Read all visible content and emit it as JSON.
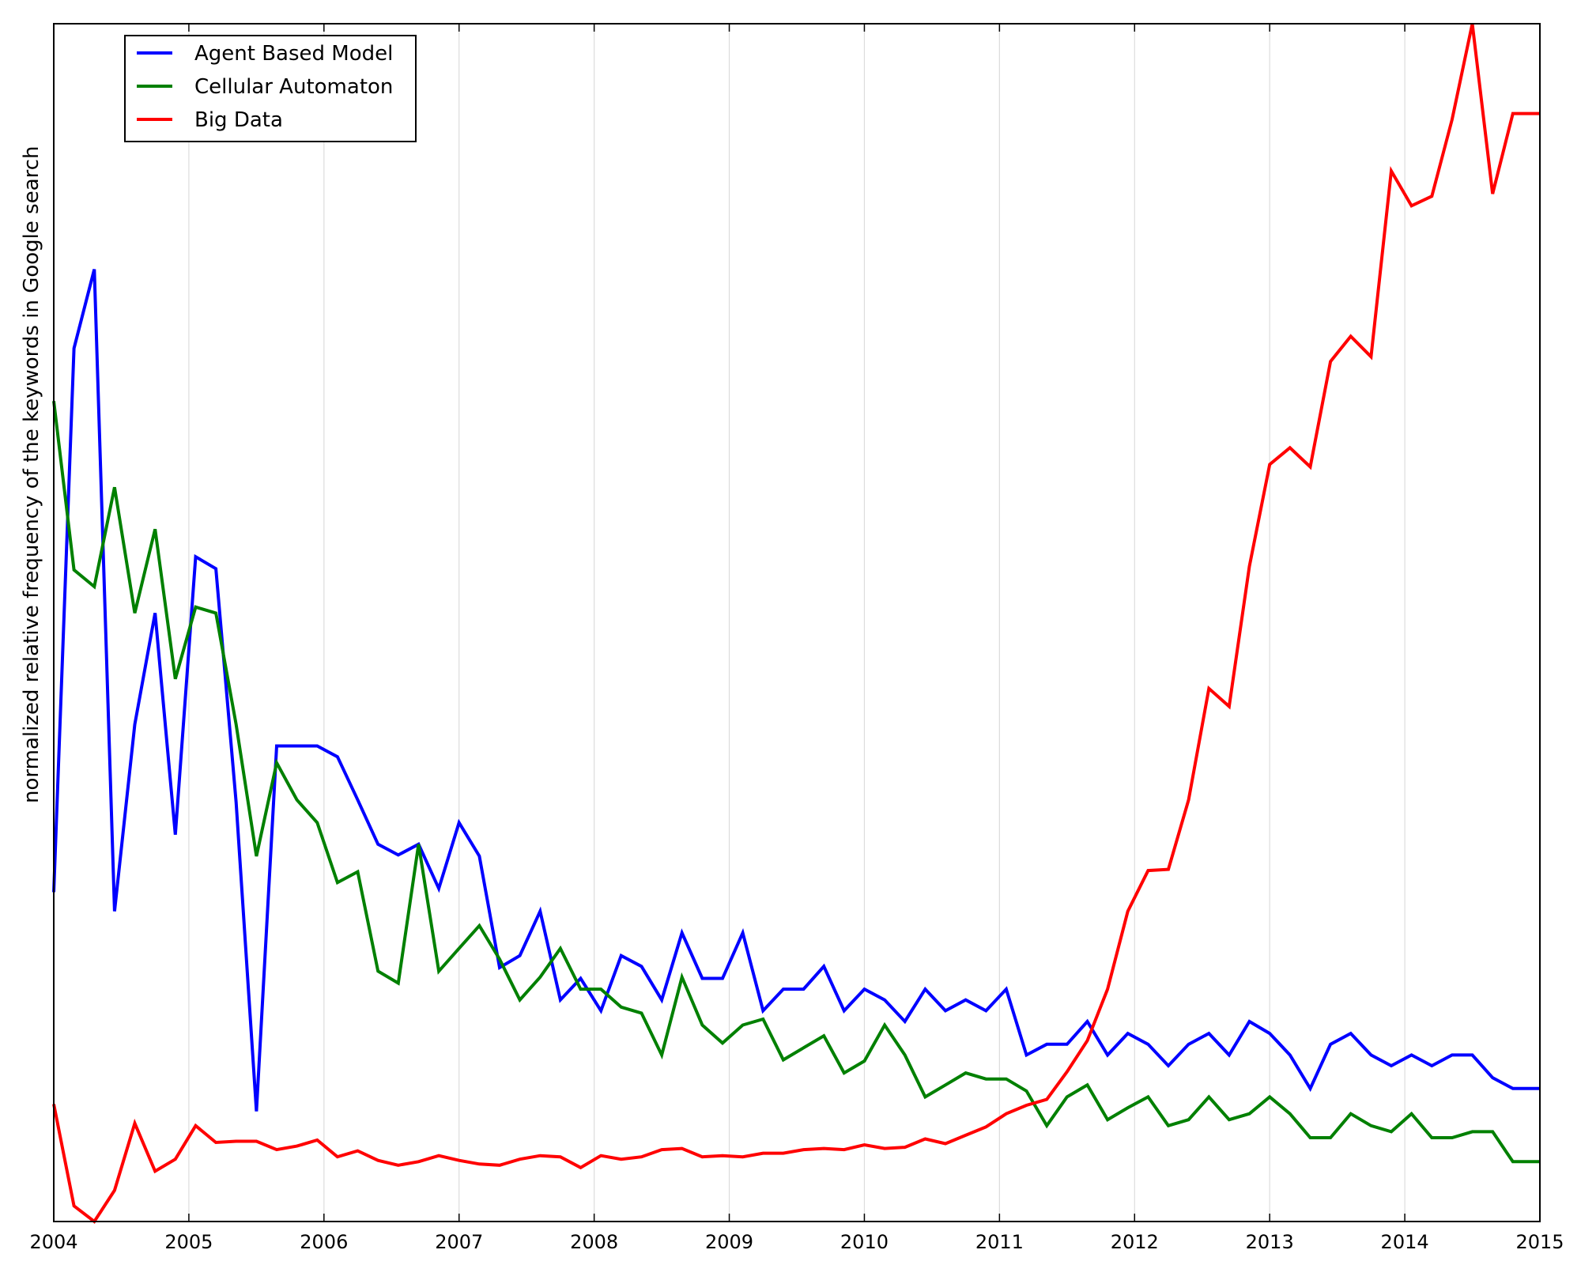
{
  "chart_data": {
    "type": "line",
    "title": "",
    "xlabel": "",
    "ylabel": "normalized relative frequency of the keywords in Google search",
    "x_ticks": [
      "2004",
      "2005",
      "2006",
      "2007",
      "2008",
      "2009",
      "2010",
      "2011",
      "2012",
      "2013",
      "2014",
      "2015"
    ],
    "xlim": [
      2004,
      2015
    ],
    "ylim": [
      0,
      1
    ],
    "y_ticks_shown": false,
    "grid": "vertical at year ticks",
    "legend": {
      "placement": "top-left"
    },
    "series": [
      {
        "name": "Agent Based Model",
        "color": "#0000ff",
        "points": [
          [
            2004.0,
            0.275
          ],
          [
            2004.15,
            0.729
          ],
          [
            2004.3,
            0.795
          ],
          [
            2004.45,
            0.259
          ],
          [
            2004.6,
            0.415
          ],
          [
            2004.75,
            0.508
          ],
          [
            2004.9,
            0.323
          ],
          [
            2005.05,
            0.555
          ],
          [
            2005.2,
            0.545
          ],
          [
            2005.35,
            0.35
          ],
          [
            2005.5,
            0.092
          ],
          [
            2005.65,
            0.397
          ],
          [
            2005.8,
            0.397
          ],
          [
            2005.95,
            0.397
          ],
          [
            2006.1,
            0.388
          ],
          [
            2006.25,
            0.352
          ],
          [
            2006.4,
            0.315
          ],
          [
            2006.55,
            0.306
          ],
          [
            2006.7,
            0.315
          ],
          [
            2006.85,
            0.278
          ],
          [
            2007.0,
            0.333
          ],
          [
            2007.15,
            0.305
          ],
          [
            2007.3,
            0.212
          ],
          [
            2007.45,
            0.222
          ],
          [
            2007.6,
            0.259
          ],
          [
            2007.75,
            0.185
          ],
          [
            2007.9,
            0.203
          ],
          [
            2008.05,
            0.176
          ],
          [
            2008.2,
            0.222
          ],
          [
            2008.35,
            0.213
          ],
          [
            2008.5,
            0.185
          ],
          [
            2008.65,
            0.241
          ],
          [
            2008.8,
            0.203
          ],
          [
            2008.95,
            0.203
          ],
          [
            2009.1,
            0.241
          ],
          [
            2009.25,
            0.176
          ],
          [
            2009.4,
            0.194
          ],
          [
            2009.55,
            0.194
          ],
          [
            2009.7,
            0.213
          ],
          [
            2009.85,
            0.176
          ],
          [
            2010.0,
            0.194
          ],
          [
            2010.15,
            0.185
          ],
          [
            2010.3,
            0.167
          ],
          [
            2010.45,
            0.194
          ],
          [
            2010.6,
            0.176
          ],
          [
            2010.75,
            0.185
          ],
          [
            2010.9,
            0.176
          ],
          [
            2011.05,
            0.194
          ],
          [
            2011.2,
            0.139
          ],
          [
            2011.35,
            0.148
          ],
          [
            2011.5,
            0.148
          ],
          [
            2011.65,
            0.167
          ],
          [
            2011.8,
            0.139
          ],
          [
            2011.95,
            0.157
          ],
          [
            2012.1,
            0.148
          ],
          [
            2012.25,
            0.13
          ],
          [
            2012.4,
            0.148
          ],
          [
            2012.55,
            0.157
          ],
          [
            2012.7,
            0.139
          ],
          [
            2012.85,
            0.167
          ],
          [
            2013.0,
            0.157
          ],
          [
            2013.15,
            0.139
          ],
          [
            2013.3,
            0.111
          ],
          [
            2013.45,
            0.148
          ],
          [
            2013.6,
            0.157
          ],
          [
            2013.75,
            0.139
          ],
          [
            2013.9,
            0.13
          ],
          [
            2014.05,
            0.139
          ],
          [
            2014.2,
            0.13
          ],
          [
            2014.35,
            0.139
          ],
          [
            2014.5,
            0.139
          ],
          [
            2014.65,
            0.12
          ],
          [
            2014.8,
            0.111
          ],
          [
            2015.0,
            0.111
          ]
        ]
      },
      {
        "name": "Cellular Automaton",
        "color": "#008000",
        "points": [
          [
            2004.0,
            0.685
          ],
          [
            2004.15,
            0.544
          ],
          [
            2004.3,
            0.53
          ],
          [
            2004.45,
            0.613
          ],
          [
            2004.6,
            0.508
          ],
          [
            2004.75,
            0.578
          ],
          [
            2004.9,
            0.453
          ],
          [
            2005.05,
            0.513
          ],
          [
            2005.2,
            0.508
          ],
          [
            2005.35,
            0.415
          ],
          [
            2005.5,
            0.305
          ],
          [
            2005.65,
            0.383
          ],
          [
            2005.8,
            0.352
          ],
          [
            2005.95,
            0.333
          ],
          [
            2006.1,
            0.283
          ],
          [
            2006.25,
            0.292
          ],
          [
            2006.4,
            0.209
          ],
          [
            2006.55,
            0.199
          ],
          [
            2006.7,
            0.315
          ],
          [
            2006.85,
            0.209
          ],
          [
            2007.0,
            0.228
          ],
          [
            2007.15,
            0.247
          ],
          [
            2007.3,
            0.219
          ],
          [
            2007.45,
            0.185
          ],
          [
            2007.6,
            0.204
          ],
          [
            2007.75,
            0.228
          ],
          [
            2007.9,
            0.194
          ],
          [
            2008.05,
            0.194
          ],
          [
            2008.2,
            0.179
          ],
          [
            2008.35,
            0.174
          ],
          [
            2008.5,
            0.139
          ],
          [
            2008.65,
            0.204
          ],
          [
            2008.8,
            0.164
          ],
          [
            2008.95,
            0.149
          ],
          [
            2009.1,
            0.164
          ],
          [
            2009.25,
            0.169
          ],
          [
            2009.4,
            0.135
          ],
          [
            2009.55,
            0.145
          ],
          [
            2009.7,
            0.155
          ],
          [
            2009.85,
            0.124
          ],
          [
            2010.0,
            0.134
          ],
          [
            2010.15,
            0.164
          ],
          [
            2010.3,
            0.139
          ],
          [
            2010.45,
            0.104
          ],
          [
            2010.6,
            0.114
          ],
          [
            2010.75,
            0.124
          ],
          [
            2010.9,
            0.119
          ],
          [
            2011.05,
            0.119
          ],
          [
            2011.2,
            0.109
          ],
          [
            2011.35,
            0.08
          ],
          [
            2011.5,
            0.104
          ],
          [
            2011.65,
            0.114
          ],
          [
            2011.8,
            0.085
          ],
          [
            2011.95,
            0.095
          ],
          [
            2012.1,
            0.104
          ],
          [
            2012.25,
            0.08
          ],
          [
            2012.4,
            0.085
          ],
          [
            2012.55,
            0.104
          ],
          [
            2012.7,
            0.085
          ],
          [
            2012.85,
            0.09
          ],
          [
            2013.0,
            0.104
          ],
          [
            2013.15,
            0.09
          ],
          [
            2013.3,
            0.07
          ],
          [
            2013.45,
            0.07
          ],
          [
            2013.6,
            0.09
          ],
          [
            2013.75,
            0.08
          ],
          [
            2013.9,
            0.075
          ],
          [
            2014.05,
            0.09
          ],
          [
            2014.2,
            0.07
          ],
          [
            2014.35,
            0.07
          ],
          [
            2014.5,
            0.075
          ],
          [
            2014.65,
            0.075
          ],
          [
            2014.8,
            0.05
          ],
          [
            2015.0,
            0.05
          ]
        ]
      },
      {
        "name": "Big Data",
        "color": "#ff0000",
        "points": [
          [
            2004.0,
            0.098
          ],
          [
            2004.15,
            0.013
          ],
          [
            2004.3,
            0.0
          ],
          [
            2004.45,
            0.026
          ],
          [
            2004.6,
            0.082
          ],
          [
            2004.75,
            0.042
          ],
          [
            2004.9,
            0.052
          ],
          [
            2005.05,
            0.08
          ],
          [
            2005.2,
            0.066
          ],
          [
            2005.35,
            0.067
          ],
          [
            2005.5,
            0.067
          ],
          [
            2005.65,
            0.06
          ],
          [
            2005.8,
            0.063
          ],
          [
            2005.95,
            0.068
          ],
          [
            2006.1,
            0.054
          ],
          [
            2006.25,
            0.059
          ],
          [
            2006.4,
            0.051
          ],
          [
            2006.55,
            0.047
          ],
          [
            2006.7,
            0.05
          ],
          [
            2006.85,
            0.055
          ],
          [
            2007.0,
            0.051
          ],
          [
            2007.15,
            0.048
          ],
          [
            2007.3,
            0.047
          ],
          [
            2007.45,
            0.052
          ],
          [
            2007.6,
            0.055
          ],
          [
            2007.75,
            0.054
          ],
          [
            2007.9,
            0.045
          ],
          [
            2008.05,
            0.055
          ],
          [
            2008.2,
            0.052
          ],
          [
            2008.35,
            0.054
          ],
          [
            2008.5,
            0.06
          ],
          [
            2008.65,
            0.061
          ],
          [
            2008.8,
            0.054
          ],
          [
            2008.95,
            0.055
          ],
          [
            2009.1,
            0.054
          ],
          [
            2009.25,
            0.057
          ],
          [
            2009.4,
            0.057
          ],
          [
            2009.55,
            0.06
          ],
          [
            2009.7,
            0.061
          ],
          [
            2009.85,
            0.06
          ],
          [
            2010.0,
            0.064
          ],
          [
            2010.15,
            0.061
          ],
          [
            2010.3,
            0.062
          ],
          [
            2010.45,
            0.069
          ],
          [
            2010.6,
            0.065
          ],
          [
            2010.75,
            0.072
          ],
          [
            2010.9,
            0.079
          ],
          [
            2011.05,
            0.09
          ],
          [
            2011.2,
            0.097
          ],
          [
            2011.35,
            0.102
          ],
          [
            2011.5,
            0.125
          ],
          [
            2011.65,
            0.151
          ],
          [
            2011.8,
            0.194
          ],
          [
            2011.95,
            0.259
          ],
          [
            2012.1,
            0.293
          ],
          [
            2012.25,
            0.294
          ],
          [
            2012.4,
            0.352
          ],
          [
            2012.55,
            0.445
          ],
          [
            2012.7,
            0.43
          ],
          [
            2012.85,
            0.547
          ],
          [
            2013.0,
            0.632
          ],
          [
            2013.15,
            0.646
          ],
          [
            2013.3,
            0.63
          ],
          [
            2013.45,
            0.718
          ],
          [
            2013.6,
            0.739
          ],
          [
            2013.75,
            0.722
          ],
          [
            2013.9,
            0.877
          ],
          [
            2014.05,
            0.848
          ],
          [
            2014.2,
            0.856
          ],
          [
            2014.35,
            0.92
          ],
          [
            2014.5,
            1.0
          ],
          [
            2014.65,
            0.858
          ],
          [
            2014.8,
            0.925
          ],
          [
            2015.0,
            0.925
          ]
        ]
      }
    ]
  }
}
